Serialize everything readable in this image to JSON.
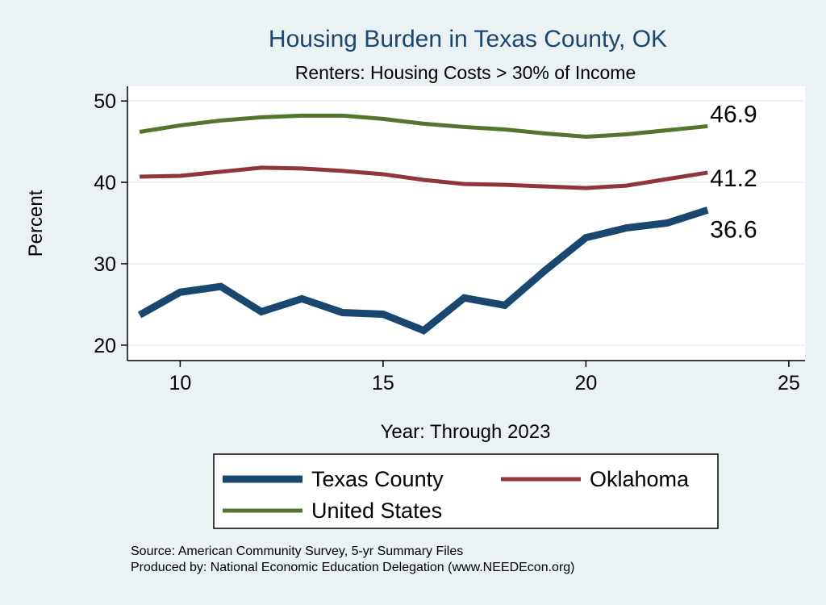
{
  "chart_data": {
    "type": "line",
    "title": "Housing Burden in Texas County, OK",
    "subtitle": "Renters: Housing Costs > 30% of Income",
    "xlabel": "Year: Through 2023",
    "ylabel": "Percent",
    "xlim": [
      8.7,
      25.4
    ],
    "ylim": [
      18.1,
      51.8
    ],
    "xticks": [
      10,
      15,
      20,
      25
    ],
    "yticks": [
      20,
      30,
      40,
      50
    ],
    "grid": true,
    "x": [
      9,
      10,
      11,
      12,
      13,
      14,
      15,
      16,
      17,
      18,
      19,
      20,
      21,
      22,
      23
    ],
    "series": [
      {
        "name": "Texas County",
        "color": "#1a476f",
        "values": [
          23.7,
          26.5,
          27.2,
          24.1,
          25.7,
          24.0,
          23.8,
          21.8,
          25.8,
          24.9,
          29.2,
          33.2,
          34.4,
          35.0,
          36.6
        ],
        "end_label": "36.6"
      },
      {
        "name": "Oklahoma",
        "color": "#90353b",
        "values": [
          40.7,
          40.8,
          41.3,
          41.8,
          41.7,
          41.4,
          41.0,
          40.3,
          39.8,
          39.7,
          39.5,
          39.3,
          39.6,
          40.4,
          41.2
        ],
        "end_label": "41.2"
      },
      {
        "name": "United States",
        "color": "#55752f",
        "values": [
          46.2,
          47.0,
          47.6,
          48.0,
          48.2,
          48.2,
          47.8,
          47.2,
          46.8,
          46.5,
          46.0,
          45.6,
          45.9,
          46.4,
          46.9
        ],
        "end_label": "46.9"
      }
    ],
    "legend_position": "bottom",
    "notes": [
      "Source: American Community Survey, 5-yr Summary Files",
      "Produced by: National Economic Education Delegation (www.NEEDEcon.org)"
    ]
  }
}
